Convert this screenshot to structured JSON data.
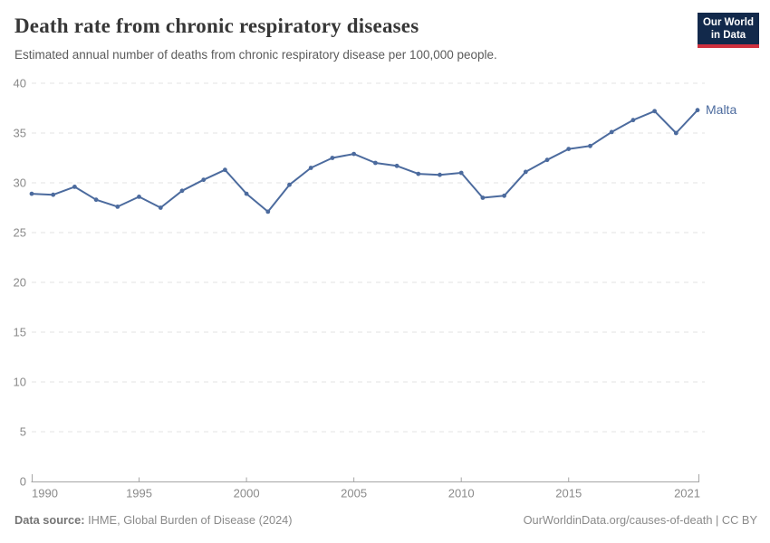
{
  "header": {
    "title": "Death rate from chronic respiratory diseases",
    "subtitle": "Estimated annual number of deaths from chronic respiratory disease per 100,000 people.",
    "logo": {
      "line1": "Our World",
      "line2": "in Data"
    }
  },
  "chart_data": {
    "type": "line",
    "title": "Death rate from chronic respiratory diseases",
    "subtitle": "Estimated annual number of deaths from chronic respiratory disease per 100,000 people.",
    "xlabel": "",
    "ylabel": "",
    "ylim": [
      0,
      40
    ],
    "yticks": [
      0,
      5,
      10,
      15,
      20,
      25,
      30,
      35,
      40
    ],
    "xticks": [
      1990,
      1995,
      2000,
      2005,
      2010,
      2015,
      2021
    ],
    "grid": "horizontal-dashed",
    "legend_position": "end-of-line-label",
    "x": [
      1990,
      1991,
      1992,
      1993,
      1994,
      1995,
      1996,
      1997,
      1998,
      1999,
      2000,
      2001,
      2002,
      2003,
      2004,
      2005,
      2006,
      2007,
      2008,
      2009,
      2010,
      2011,
      2012,
      2013,
      2014,
      2015,
      2016,
      2017,
      2018,
      2019,
      2020,
      2021
    ],
    "series": [
      {
        "name": "Malta",
        "color": "#4c6b9e",
        "values": [
          28.9,
          28.8,
          29.6,
          28.3,
          27.6,
          28.6,
          27.5,
          29.2,
          30.3,
          31.3,
          28.9,
          27.1,
          29.8,
          31.5,
          32.5,
          32.9,
          32.0,
          31.7,
          30.9,
          30.8,
          31.0,
          28.5,
          28.7,
          31.1,
          32.3,
          33.4,
          33.7,
          35.1,
          36.3,
          37.2,
          35.0,
          37.3
        ]
      }
    ]
  },
  "footer": {
    "source_label": "Data source:",
    "source_text": " IHME, Global Burden of Disease (2024)",
    "rights": "OurWorldinData.org/causes-of-death | CC BY"
  },
  "colors": {
    "line": "#4c6b9e",
    "grid": "#e3e3e3",
    "axis": "#a5a5a5",
    "tick_label": "#8a8a8a",
    "title": "#373737",
    "subtitle": "#5b5b5b",
    "logo_bg": "#12294b",
    "logo_bar": "#cf303e",
    "footer_text": "#8a8a8a"
  }
}
